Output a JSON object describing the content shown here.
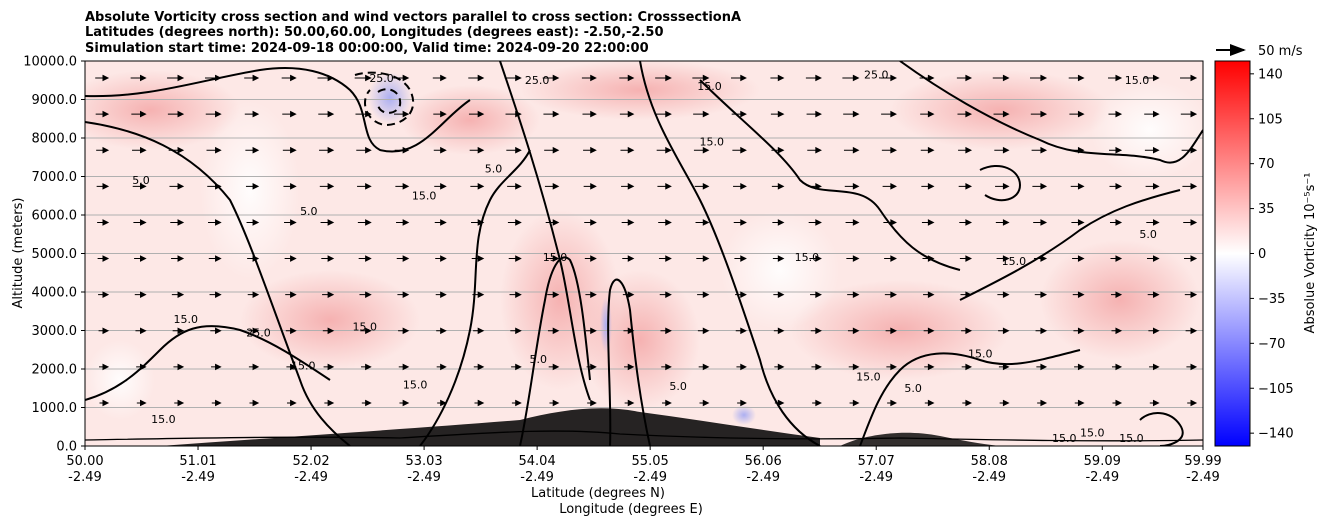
{
  "chart_data": {
    "type": "heatmap",
    "title_lines": [
      "Absolute Vorticity cross section and wind vectors parallel to cross section: CrosssectionA",
      "Latitudes (degrees north): 50.00,60.00, Longitudes (degrees east): -2.50,-2.50",
      "Simulation start time: 2024-09-18 00:00:00, Valid time: 2024-09-20 22:00:00"
    ],
    "xlabel": "Latitude (degrees N)",
    "xlabel2": "Longitude (degrees E)",
    "ylabel": "Altitude (meters)",
    "x_ticks": [
      {
        "lat": "50.00",
        "lon": "-2.49"
      },
      {
        "lat": "51.01",
        "lon": "-2.49"
      },
      {
        "lat": "52.02",
        "lon": "-2.49"
      },
      {
        "lat": "53.03",
        "lon": "-2.49"
      },
      {
        "lat": "54.04",
        "lon": "-2.49"
      },
      {
        "lat": "55.05",
        "lon": "-2.49"
      },
      {
        "lat": "56.06",
        "lon": "-2.49"
      },
      {
        "lat": "57.07",
        "lon": "-2.49"
      },
      {
        "lat": "58.08",
        "lon": "-2.49"
      },
      {
        "lat": "59.09",
        "lon": "-2.49"
      },
      {
        "lat": "59.99",
        "lon": "-2.49"
      }
    ],
    "xlim": [
      50.0,
      59.99
    ],
    "y_ticks": [
      "0.0",
      "1000.0",
      "2000.0",
      "3000.0",
      "4000.0",
      "5000.0",
      "6000.0",
      "7000.0",
      "8000.0",
      "9000.0",
      "10000.0"
    ],
    "ylim": [
      0,
      10000
    ],
    "grid": "horizontal",
    "colorbar": {
      "label": "Absolue Vorticity 10⁻⁵s⁻¹",
      "ticks": [
        "140",
        "105",
        "70",
        "35",
        "0",
        "−35",
        "−70",
        "−105",
        "−140"
      ],
      "range": [
        -150,
        150
      ],
      "colormap": "bwr",
      "color_low": "#0000ff",
      "color_mid": "#ffffff",
      "color_high": "#ff0000"
    },
    "quiver_key": "50 m/s",
    "contour_levels": [
      "5.0",
      "15.0",
      "25.0"
    ],
    "contour_labels": [
      {
        "text": "25.0",
        "lat": 57.07,
        "alt": 9550
      },
      {
        "text": "15.0",
        "lat": 55.6,
        "alt": 7800
      },
      {
        "text": "5.0",
        "lat": 53.65,
        "alt": 7100
      },
      {
        "text": "25.0",
        "lat": 51.55,
        "alt": 2850
      },
      {
        "text": "15.0",
        "lat": 51.95,
        "alt": 1990
      },
      {
        "text": "15.0",
        "lat": 57.0,
        "alt": 1700
      },
      {
        "text": "15.0",
        "lat": 58.0,
        "alt": 2300
      },
      {
        "text": "15.0",
        "lat": 59.0,
        "alt": 250
      },
      {
        "text": "15.0",
        "lat": 59.35,
        "alt": 100
      },
      {
        "text": "15.0",
        "lat": 58.75,
        "alt": 100
      },
      {
        "text": "25.0",
        "lat": 52.65,
        "alt": 9450
      },
      {
        "text": "25.0",
        "lat": 54.04,
        "alt": 9400
      },
      {
        "text": "15.0",
        "lat": 55.58,
        "alt": 9250
      },
      {
        "text": "15.0",
        "lat": 59.4,
        "alt": 9400
      },
      {
        "text": "15.0",
        "lat": 53.03,
        "alt": 6400
      },
      {
        "text": "15.0",
        "lat": 56.45,
        "alt": 4800
      },
      {
        "text": "15.0",
        "lat": 58.3,
        "alt": 4700
      },
      {
        "text": "5.0",
        "lat": 50.5,
        "alt": 6800
      },
      {
        "text": "5.0",
        "lat": 52.0,
        "alt": 6000
      },
      {
        "text": "5.0",
        "lat": 59.5,
        "alt": 5400
      },
      {
        "text": "15.0",
        "lat": 54.2,
        "alt": 4800
      },
      {
        "text": "5.0",
        "lat": 54.05,
        "alt": 2150
      },
      {
        "text": "5.0",
        "lat": 55.3,
        "alt": 1450
      },
      {
        "text": "5.0",
        "lat": 57.4,
        "alt": 1400
      },
      {
        "text": "15.0",
        "lat": 50.7,
        "alt": 600
      },
      {
        "text": "15.0",
        "lat": 52.5,
        "alt": 3000
      },
      {
        "text": "15.0",
        "lat": 52.95,
        "alt": 1500
      },
      {
        "text": "15.0",
        "lat": 50.9,
        "alt": 3200
      }
    ]
  }
}
